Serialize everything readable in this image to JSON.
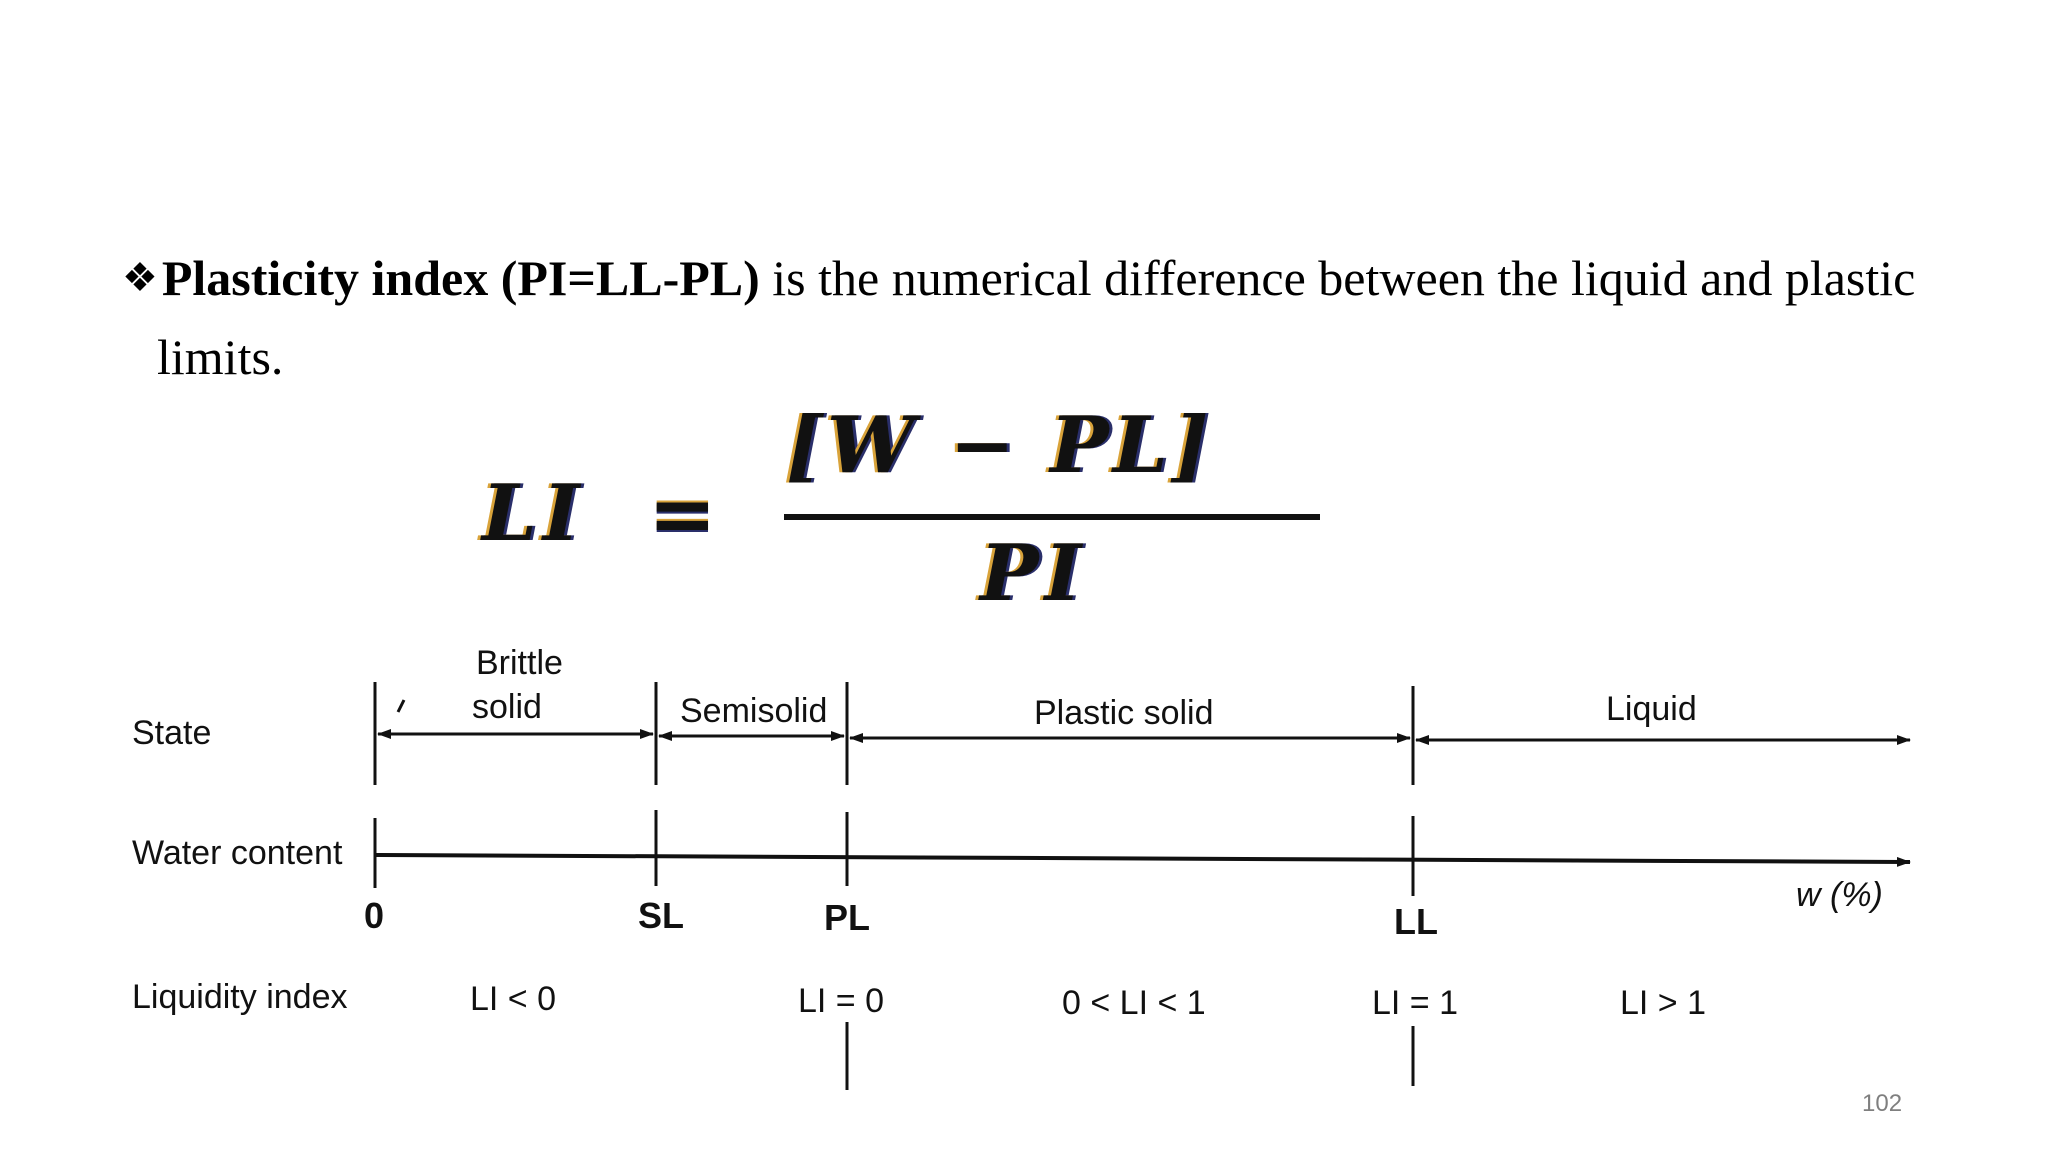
{
  "slide": {
    "bullet_symbol": "❖",
    "bold_text": "Plasticity index (PI=LL-PL)",
    "body_text": " is the numerical difference between the liquid and plastic",
    "body_text_line2": "limits.",
    "page_number": "102"
  },
  "formula": {
    "lhs": "LI",
    "equals": "=",
    "numerator": "[W − PL]",
    "denominator": "PI"
  },
  "diagram": {
    "row_labels": {
      "state": "State",
      "water_content": "Water content",
      "liquidity_index": "Liquidity index"
    },
    "states": {
      "brittle_line1": "Brittle",
      "brittle_line2": "solid",
      "semisolid": "Semisolid",
      "plastic_solid": "Plastic solid",
      "liquid": "Liquid"
    },
    "limits": {
      "zero": "0",
      "sl": "SL",
      "pl": "PL",
      "ll": "LL",
      "axis_unit": "w (%)"
    },
    "li_values": {
      "lt0": "LI < 0",
      "eq0": "LI = 0",
      "between": "0 < LI < 1",
      "eq1": "LI = 1",
      "gt1": "LI > 1"
    }
  }
}
